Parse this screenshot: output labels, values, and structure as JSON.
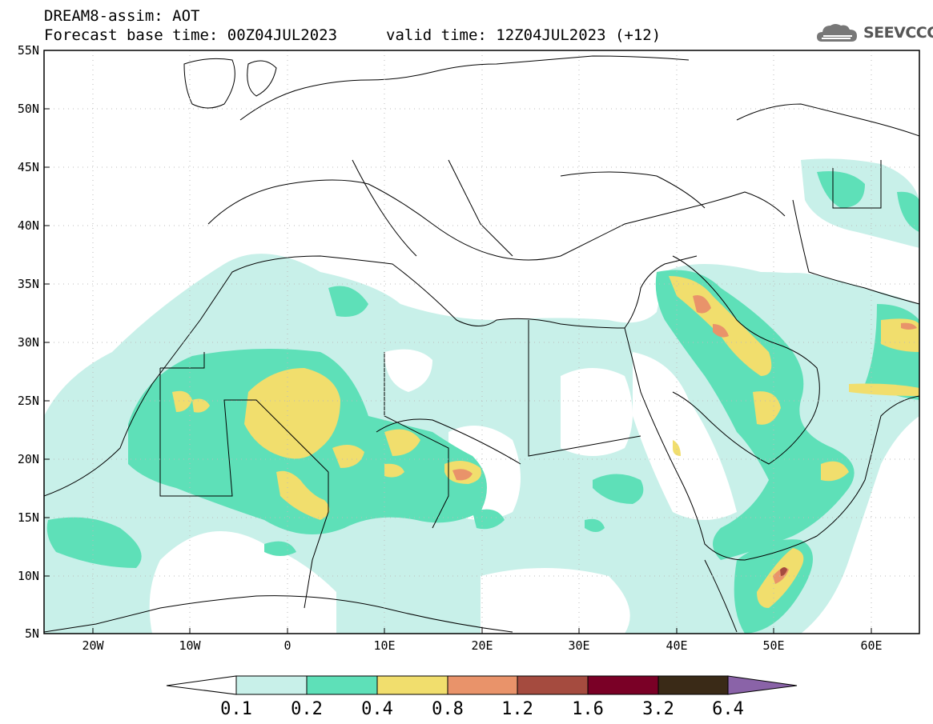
{
  "header": {
    "title_line1": "DREAM8-assim: AOT",
    "title_line2": "Forecast base time: 00Z04JUL2023",
    "valid_time": "valid time: 12Z04JUL2023 (+12)"
  },
  "logo": {
    "text": "SEEVCCC",
    "icon": "cloud-icon"
  },
  "axes": {
    "lat_labels": [
      "55N",
      "50N",
      "45N",
      "40N",
      "35N",
      "30N",
      "25N",
      "20N",
      "15N",
      "10N",
      "5N"
    ],
    "lon_labels": [
      "20W",
      "10W",
      "0",
      "10E",
      "20E",
      "30E",
      "40E",
      "50E",
      "60E"
    ],
    "lat_range": [
      5,
      55
    ],
    "lon_range": [
      -25,
      65
    ]
  },
  "colorbar": {
    "labels": [
      "0.1",
      "0.2",
      "0.4",
      "0.8",
      "1.2",
      "1.6",
      "3.2",
      "6.4"
    ],
    "colors": [
      "#ffffff",
      "#c8f0e9",
      "#5ee0b8",
      "#f1de6d",
      "#e9936a",
      "#a54b3f",
      "#7a0026",
      "#3a2a17",
      "#8a63a8"
    ]
  },
  "colors": {
    "frame": "#000000",
    "grid": "#bbbbbb"
  }
}
